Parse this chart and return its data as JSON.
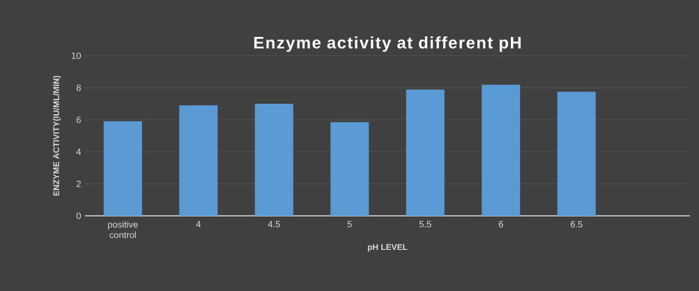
{
  "chart_data": {
    "type": "bar",
    "title": "Enzyme activity at different pH",
    "xlabel": "pH LEVEL",
    "ylabel": "ENZYME ACTIVITY(IU/ML/MIN)",
    "categories": [
      "positive control",
      "4",
      "4.5",
      "5",
      "5.5",
      "6",
      "6.5",
      null
    ],
    "values": [
      5.9,
      6.9,
      7.0,
      5.85,
      7.88,
      8.19,
      7.75,
      null
    ],
    "color": "#5b9bd5",
    "ylim": [
      0,
      10
    ],
    "yticks": [
      0,
      2,
      4,
      6,
      8,
      10
    ],
    "grid": "y"
  }
}
